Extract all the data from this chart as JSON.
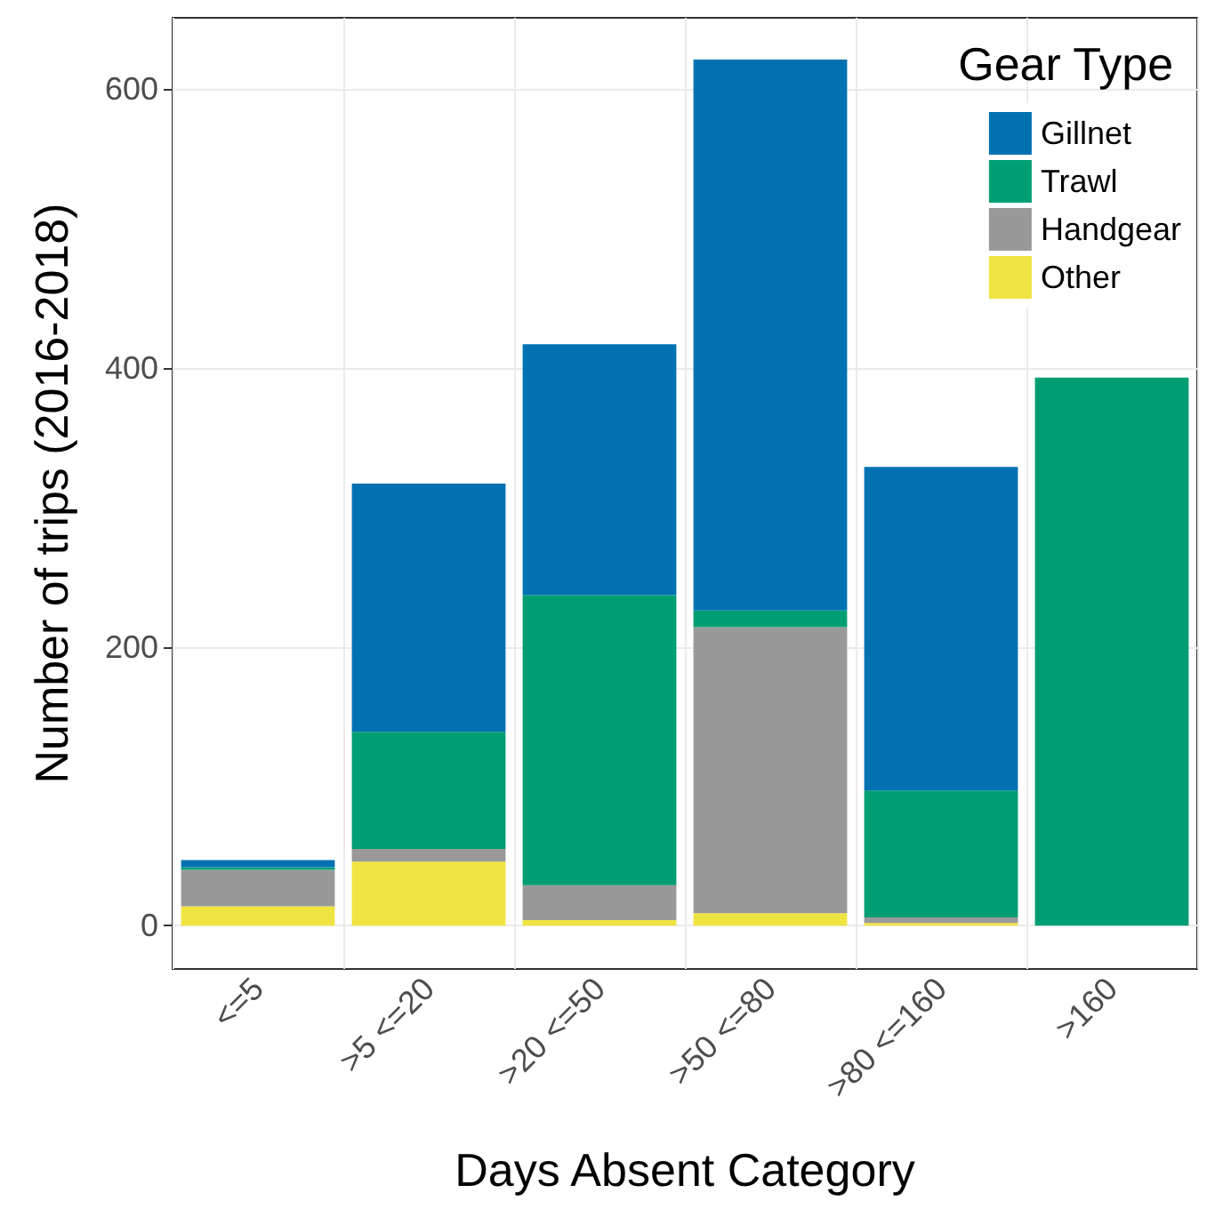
{
  "chart_data": {
    "type": "bar",
    "stacked": true,
    "xlabel": "Days Absent Category",
    "ylabel": "Number of trips (2016-2018)",
    "legend_title": "Gear Type",
    "categories": [
      "<=5",
      ">5 <=20",
      ">20 <=50",
      ">50 <=80",
      ">80 <=160",
      ">160"
    ],
    "series": [
      {
        "name": "Other",
        "color": "#f0e442",
        "values": [
          14,
          46,
          4,
          9,
          2,
          0
        ]
      },
      {
        "name": "Handgear",
        "color": "#999999",
        "values": [
          26,
          9,
          25,
          205,
          4,
          0
        ]
      },
      {
        "name": "Trawl",
        "color": "#009e73",
        "values": [
          2,
          84,
          208,
          12,
          91,
          393
        ]
      },
      {
        "name": "Gillnet",
        "color": "#0072b2",
        "values": [
          5,
          178,
          180,
          395,
          232,
          0
        ]
      }
    ],
    "ylim": [
      -31,
      651
    ],
    "yticks": [
      0,
      200,
      400,
      600
    ],
    "grid": true,
    "legend": "top right"
  }
}
